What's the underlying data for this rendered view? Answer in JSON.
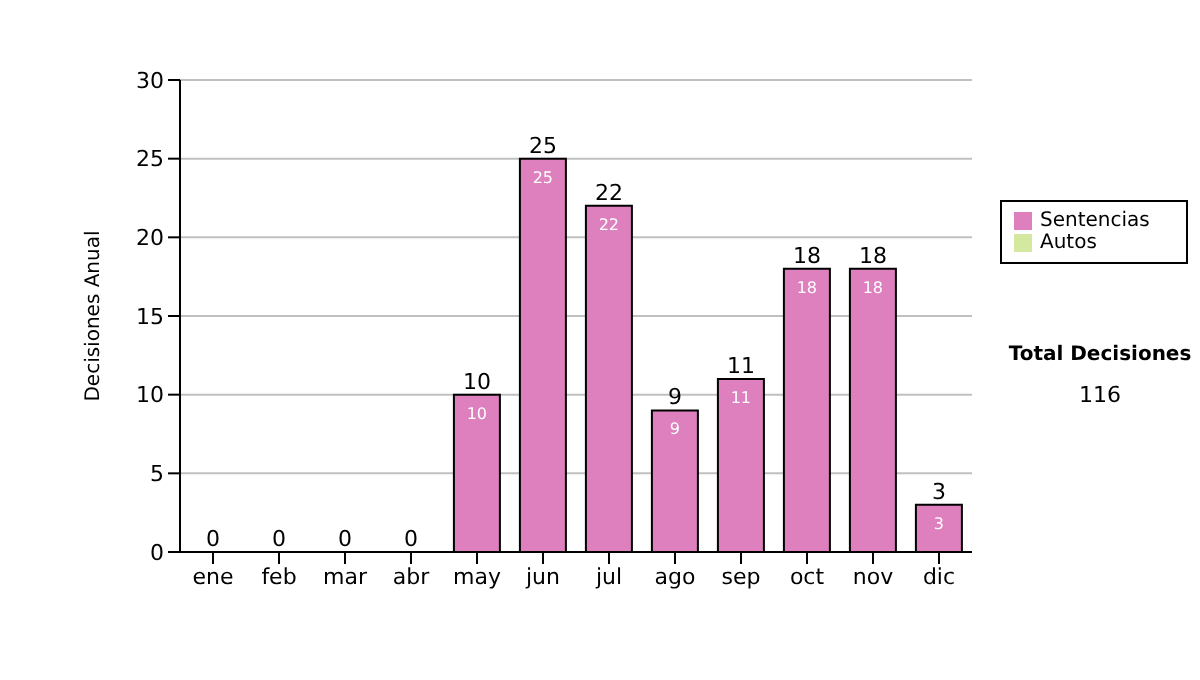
{
  "chart_data": {
    "type": "bar",
    "stacked": true,
    "ylabel": "Decisiones Anual",
    "categories": [
      "ene",
      "feb",
      "mar",
      "abr",
      "may",
      "jun",
      "jul",
      "ago",
      "sep",
      "oct",
      "nov",
      "dic"
    ],
    "series": [
      {
        "name": "Sentencias",
        "color": "#dd80bd",
        "values": [
          0,
          0,
          0,
          0,
          10,
          25,
          22,
          9,
          11,
          18,
          18,
          3
        ],
        "value_labels": [
          null,
          null,
          null,
          null,
          "10",
          "25",
          "22",
          "9",
          "11",
          "18",
          "18",
          "3"
        ]
      },
      {
        "name": "Autos",
        "color": "#d4e8a0",
        "values": [
          0,
          0,
          0,
          0,
          0,
          0,
          0,
          0,
          0,
          0,
          0,
          0
        ]
      }
    ],
    "totals": [
      "0",
      "0",
      "0",
      "0",
      "10",
      "25",
      "22",
      "9",
      "11",
      "18",
      "18",
      "3"
    ],
    "ylim": [
      0,
      30
    ],
    "yticks": [
      0,
      5,
      10,
      15,
      20,
      25,
      30
    ],
    "grid": "y",
    "legend": "right",
    "annotations": [
      "Total Decisiones",
      "116"
    ]
  }
}
